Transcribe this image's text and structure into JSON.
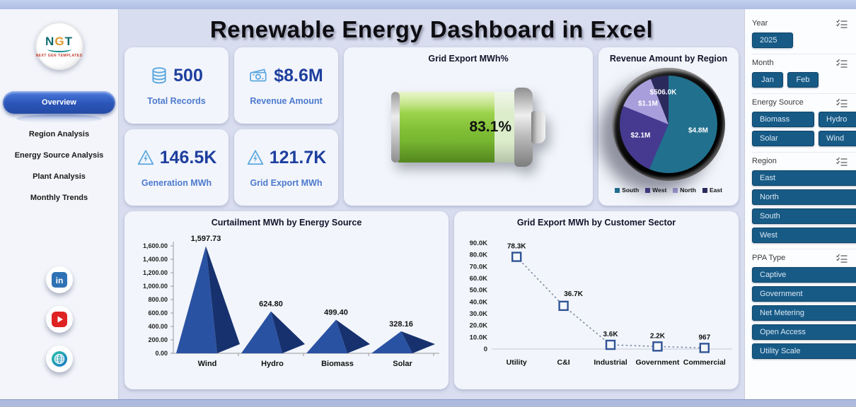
{
  "header": {
    "title": "Renewable Energy Dashboard in Excel"
  },
  "sidebar": {
    "logo": {
      "text_n": "N",
      "text_g": "G",
      "text_t": "T",
      "subtext": "NEXT GEN TEMPLATES"
    },
    "nav": [
      {
        "label": "Overview",
        "active": true
      },
      {
        "label": "Region Analysis",
        "active": false
      },
      {
        "label": "Energy Source Analysis",
        "active": false
      },
      {
        "label": "Plant  Analysis",
        "active": false
      },
      {
        "label": "Monthly Trends",
        "active": false
      }
    ],
    "social": [
      "linkedin-icon",
      "youtube-icon",
      "website-globe-icon"
    ]
  },
  "kpis": [
    {
      "icon": "database-icon",
      "value": "500",
      "label": "Total Records"
    },
    {
      "icon": "cash-icon",
      "value": "$8.6M",
      "label": "Revenue Amount"
    },
    {
      "icon": "energy-warning-icon",
      "value": "146.5K",
      "label": "Generation MWh"
    },
    {
      "icon": "energy-warning-icon",
      "value": "121.7K",
      "label": "Grid Export MWh"
    }
  ],
  "chart_data": [
    {
      "id": "grid-export-gauge",
      "type": "gauge",
      "title": "Grid Export MWh%",
      "value_pct": 83.1,
      "label": "83.1%",
      "fill_color": "#7fbe35",
      "empty_color": "#dcedcb"
    },
    {
      "id": "revenue-pie",
      "type": "pie",
      "title": "Revenue Amount by Region",
      "categories": [
        "South",
        "West",
        "North",
        "East"
      ],
      "values_million_usd": [
        4.8,
        2.1,
        1.1,
        0.506
      ],
      "labels": [
        "$4.8M",
        "$2.1M",
        "$1.1M",
        "$506.0K"
      ],
      "colors": [
        "#21708E",
        "#453A90",
        "#A79EDB",
        "#2A2A5C"
      ],
      "legend_position": "bottom"
    },
    {
      "id": "curtailment-pyramid",
      "type": "bar",
      "title": "Curtailment MWh by Energy Source",
      "categories": [
        "Wind",
        "Hydro",
        "Biomass",
        "Solar"
      ],
      "values": [
        1597.73,
        624.8,
        499.4,
        328.16
      ],
      "labels": [
        "1,597.73",
        "624.80",
        "499.40",
        "328.16"
      ],
      "ylim": [
        0,
        1600
      ],
      "ytick_step": 200,
      "ytick_labels": [
        "0.00",
        "200.00",
        "400.00",
        "600.00",
        "800.00",
        "1,000.00",
        "1,200.00",
        "1,400.00",
        "1,600.00"
      ],
      "grid": false,
      "face_color": "#2A52A3",
      "side_color": "#16316E",
      "shadow_color": "#d9dde8"
    },
    {
      "id": "grid-export-line",
      "type": "line",
      "title": "Grid Export MWh by Customer Sector",
      "categories": [
        "Utility",
        "C&I",
        "Industrial",
        "Government",
        "Commercial"
      ],
      "values": [
        78300,
        36700,
        3600,
        2200,
        967
      ],
      "labels": [
        "78.3K",
        "36.7K",
        "3.6K",
        "2.2K",
        "967"
      ],
      "ylim": [
        0,
        90000
      ],
      "ytick_step": 10000,
      "ytick_labels": [
        "0",
        "10.0K",
        "20.0K",
        "30.0K",
        "40.0K",
        "50.0K",
        "60.0K",
        "70.0K",
        "80.0K",
        "90.0K"
      ],
      "grid": false,
      "line_color": "#7c8aa6",
      "marker_color": "#2F5496",
      "marker_fill": "#f4f7fb"
    }
  ],
  "slicers": [
    {
      "label": "Year",
      "icon": "multiselect-icon",
      "layout": "inline",
      "btn_class": "w-year",
      "options": [
        "2025"
      ]
    },
    {
      "label": "Month",
      "icon": "multiselect-icon",
      "layout": "inline",
      "btn_class": "w-month",
      "options": [
        "Jan",
        "Feb"
      ]
    },
    {
      "label": "Energy Source",
      "icon": "multiselect-icon",
      "layout": "grid2",
      "btn_class": "",
      "options": [
        "Biomass",
        "Hydro",
        "Solar",
        "Wind"
      ]
    },
    {
      "label": "Region",
      "icon": "multiselect-icon",
      "layout": "stack",
      "btn_class": "",
      "options": [
        "East",
        "North",
        "South",
        "West"
      ]
    },
    {
      "label": "PPA Type",
      "icon": "multiselect-icon",
      "layout": "stack",
      "btn_class": "",
      "options": [
        "Captive",
        "Government",
        "Net Metering",
        "Open Access",
        "Utility Scale"
      ]
    }
  ],
  "colors": {
    "topbar": "#aebee4",
    "main_bg": "#d8ddef",
    "card_bg": "#f2f5fb",
    "active_nav": "#2b55b8",
    "slicer_button": "#175a86",
    "kpi_value": "#1e3f9e",
    "kpi_label": "#4d7ace",
    "kpi_icon": "#58a6df"
  }
}
